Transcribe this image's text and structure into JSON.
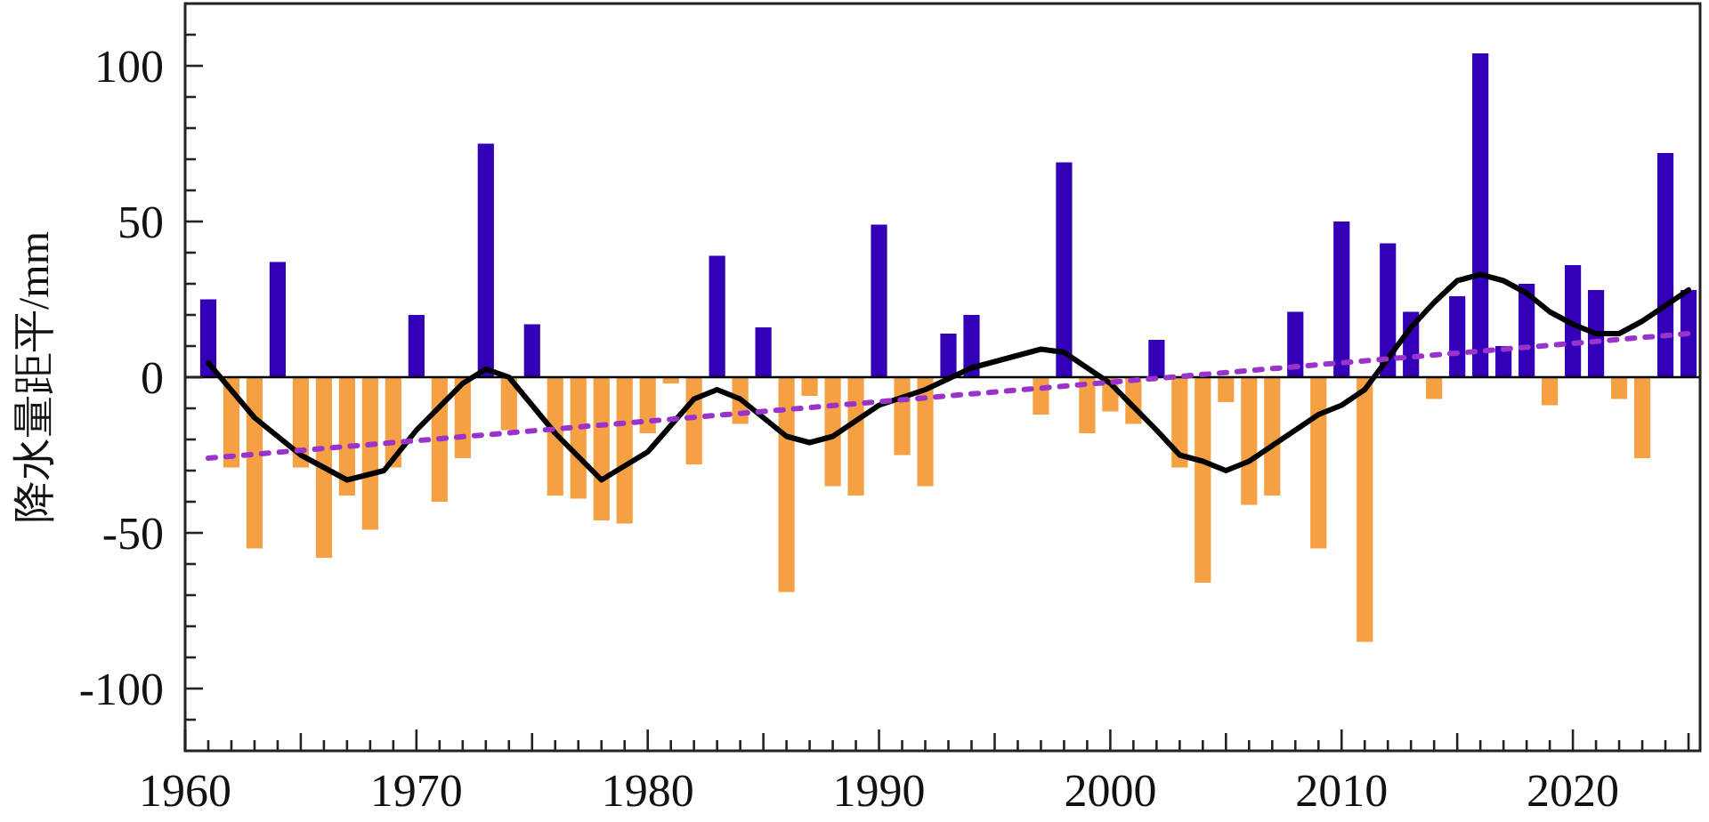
{
  "chart_data": {
    "type": "bar",
    "ylabel": "降水量距平/mm",
    "x": [
      1961,
      1962,
      1963,
      1964,
      1965,
      1966,
      1967,
      1968,
      1969,
      1970,
      1971,
      1972,
      1973,
      1974,
      1975,
      1976,
      1977,
      1978,
      1979,
      1980,
      1981,
      1982,
      1983,
      1984,
      1985,
      1986,
      1987,
      1988,
      1989,
      1990,
      1991,
      1992,
      1993,
      1994,
      1997,
      1998,
      1999,
      2000,
      2001,
      2002,
      2003,
      2004,
      2005,
      2006,
      2007,
      2008,
      2009,
      2010,
      2011,
      2012,
      2013,
      2014,
      2015,
      2016,
      2017,
      2018,
      2019,
      2020,
      2021,
      2022,
      2023,
      2024,
      2025
    ],
    "series": [
      {
        "values": [
          25,
          -29,
          -55,
          37,
          -29,
          -58,
          -38,
          -49,
          -29,
          20,
          -40,
          -26,
          75,
          -17,
          17,
          -38,
          -39,
          -46,
          -47,
          -18,
          -2,
          -28,
          39,
          -15,
          16,
          -69,
          -6,
          -35,
          -38,
          49,
          -25,
          -35,
          14,
          20,
          -12,
          69,
          -18,
          -11,
          -15,
          12,
          -29,
          -66,
          -8,
          -41,
          -38,
          21,
          -55,
          50,
          -85,
          43,
          21,
          -7,
          26,
          104,
          10,
          30,
          -9,
          36,
          28,
          -7,
          -26,
          72,
          28
        ],
        "colors": [
          "#3300b8",
          "#f5a043",
          "#f5a043",
          "#3300b8",
          "#f5a043",
          "#f5a043",
          "#f5a043",
          "#f5a043",
          "#f5a043",
          "#3300b8",
          "#f5a043",
          "#f5a043",
          "#3300b8",
          "#f5a043",
          "#3300b8",
          "#f5a043",
          "#f5a043",
          "#f5a043",
          "#f5a043",
          "#f5a043",
          "#f5a043",
          "#f5a043",
          "#3300b8",
          "#f5a043",
          "#3300b8",
          "#f5a043",
          "#f5a043",
          "#f5a043",
          "#f5a043",
          "#3300b8",
          "#f5a043",
          "#f5a043",
          "#3300b8",
          "#3300b8",
          "#f5a043",
          "#3300b8",
          "#f5a043",
          "#f5a043",
          "#f5a043",
          "#3300b8",
          "#f5a043",
          "#f5a043",
          "#f5a043",
          "#f5a043",
          "#f5a043",
          "#3300b8",
          "#f5a043",
          "#3300b8",
          "#f5a043",
          "#3300b8",
          "#3300b8",
          "#f5a043",
          "#3300b8",
          "#3300b8",
          "#3300b8",
          "#3300b8",
          "#f5a043",
          "#3300b8",
          "#3300b8",
          "#f5a043",
          "#f5a043",
          "#3300b8",
          "#3300b8"
        ]
      },
      {
        "type": "line",
        "color": "#000000",
        "line_style": "solid",
        "x": [
          1961,
          1963,
          1965,
          1967,
          1968.6,
          1970,
          1972,
          1973,
          1974,
          1976,
          1978,
          1980,
          1982,
          1983,
          1984,
          1985,
          1986,
          1987,
          1988,
          1989,
          1990,
          1992,
          1994,
          1996,
          1997,
          1998,
          2000,
          2002,
          2003,
          2004,
          2005,
          2006,
          2007,
          2008,
          2009,
          2010,
          2011,
          2012,
          2013,
          2014,
          2015,
          2016,
          2017,
          2018,
          2019,
          2020,
          2021,
          2022,
          2023,
          2024,
          2025
        ],
        "values": [
          4.6,
          -13,
          -25,
          -33,
          -30,
          -17,
          -2,
          2.6,
          0,
          -18,
          -33,
          -24,
          -7,
          -4,
          -7,
          -13,
          -19,
          -21,
          -19,
          -14,
          -9,
          -4,
          3,
          7,
          9,
          8,
          -2,
          -17,
          -25,
          -27,
          -30,
          -27,
          -22,
          -17,
          -12,
          -9,
          -4,
          6,
          16,
          24,
          31,
          33,
          31,
          27,
          21,
          17,
          14,
          14,
          18,
          23,
          28
        ]
      },
      {
        "type": "line",
        "color": "#9933cc",
        "line_style": "dotted",
        "x": [
          1961,
          2025
        ],
        "values": [
          -26,
          14
        ]
      }
    ],
    "xlim": [
      1960,
      2025.5
    ],
    "ylim": [
      -120,
      120
    ],
    "xticks": [
      1960,
      {
        "value": 1961,
        "label": null
      },
      {
        "value": 1962,
        "label": null
      },
      {
        "value": 1963,
        "label": null
      },
      {
        "value": 1964,
        "label": null
      },
      {
        "value": 1965,
        "label": null
      },
      {
        "value": 1966,
        "label": null
      },
      {
        "value": 1967,
        "label": null
      },
      {
        "value": 1968,
        "label": null
      },
      {
        "value": 1969,
        "label": null
      },
      1970,
      {
        "value": 1971,
        "label": null
      },
      {
        "value": 1972,
        "label": null
      },
      {
        "value": 1973,
        "label": null
      },
      {
        "value": 1974,
        "label": null
      },
      {
        "value": 1975,
        "label": null
      },
      {
        "value": 1976,
        "label": null
      },
      {
        "value": 1977,
        "label": null
      },
      {
        "value": 1978,
        "label": null
      },
      {
        "value": 1979,
        "label": null
      },
      1980,
      {
        "value": 1981,
        "label": null
      },
      {
        "value": 1982,
        "label": null
      },
      {
        "value": 1983,
        "label": null
      },
      {
        "value": 1984,
        "label": null
      },
      {
        "value": 1985,
        "label": null
      },
      {
        "value": 1986,
        "label": null
      },
      {
        "value": 1987,
        "label": null
      },
      {
        "value": 1988,
        "label": null
      },
      {
        "value": 1989,
        "label": null
      },
      1990,
      {
        "value": 1991,
        "label": null
      },
      {
        "value": 1992,
        "label": null
      },
      {
        "value": 1993,
        "label": null
      },
      {
        "value": 1994,
        "label": null
      },
      {
        "value": 1995,
        "label": null
      },
      {
        "value": 1996,
        "label": null
      },
      {
        "value": 1997,
        "label": null
      },
      {
        "value": 1998,
        "label": null
      },
      {
        "value": 1999,
        "label": null
      },
      2000,
      {
        "value": 2001,
        "label": null
      },
      {
        "value": 2002,
        "label": null
      },
      {
        "value": 2003,
        "label": null
      },
      {
        "value": 2004,
        "label": null
      },
      {
        "value": 2005,
        "label": null
      },
      {
        "value": 2006,
        "label": null
      },
      {
        "value": 2007,
        "label": null
      },
      {
        "value": 2008,
        "label": null
      },
      {
        "value": 2009,
        "label": null
      },
      2010,
      {
        "value": 2011,
        "label": null
      },
      {
        "value": 2012,
        "label": null
      },
      {
        "value": 2013,
        "label": null
      },
      {
        "value": 2014,
        "label": null
      },
      {
        "value": 2015,
        "label": null
      },
      {
        "value": 2016,
        "label": null
      },
      {
        "value": 2017,
        "label": null
      },
      {
        "value": 2018,
        "label": null
      },
      {
        "value": 2019,
        "label": null
      },
      2020,
      {
        "value": 2021,
        "label": null
      },
      {
        "value": 2022,
        "label": null
      },
      {
        "value": 2023,
        "label": null
      },
      {
        "value": 2024,
        "label": null
      },
      {
        "value": 2025,
        "label": null
      }
    ],
    "yticks": [
      {
        "value": -110,
        "label": null
      },
      -100,
      {
        "value": -90,
        "label": null
      },
      {
        "value": -80,
        "label": null
      },
      {
        "value": -70,
        "label": null
      },
      {
        "value": -60,
        "label": null
      },
      -50,
      {
        "value": -40,
        "label": null
      },
      {
        "value": -30,
        "label": null
      },
      {
        "value": -20,
        "label": null
      },
      {
        "value": -10,
        "label": null
      },
      0,
      {
        "value": 10,
        "label": null
      },
      {
        "value": 20,
        "label": null
      },
      {
        "value": 30,
        "label": null
      },
      {
        "value": 40,
        "label": null
      },
      50,
      {
        "value": 60,
        "label": null
      },
      {
        "value": 70,
        "label": null
      },
      {
        "value": 80,
        "label": null
      },
      {
        "value": 90,
        "label": null
      },
      100,
      {
        "value": 110,
        "label": null
      }
    ],
    "ref_lines": [
      {
        "axis": "y",
        "value": 0,
        "color": "#000000"
      }
    ]
  }
}
